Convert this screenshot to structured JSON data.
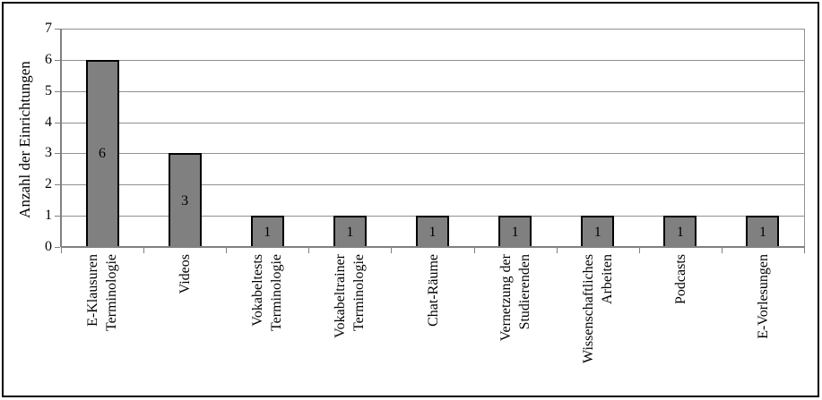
{
  "chart_data": {
    "type": "bar",
    "ylabel": "Anzahl der Einrichtungen",
    "ylim": [
      0,
      7
    ],
    "yticks": [
      0,
      1,
      2,
      3,
      4,
      5,
      6,
      7
    ],
    "grid": true,
    "legend": false,
    "categories": [
      "E-Klausuren Terminologie",
      "Videos",
      "Vokabeltests Terminologie",
      "Vokabeltrainer Terminologie",
      "Chat-Räume",
      "Vernetzung der Studierenden",
      "Wissenschaftliches Arbeiten",
      "Podcasts",
      "E-Vorlesungen"
    ],
    "category_label_lines": [
      [
        "E-Klausuren",
        "Terminologie"
      ],
      [
        "Videos"
      ],
      [
        "Vokabeltests",
        "Terminologie"
      ],
      [
        "Vokabeltrainer",
        "Terminologie"
      ],
      [
        "Chat-Räume"
      ],
      [
        "Vernetzung der",
        "Studierenden"
      ],
      [
        "Wissenschaftliches",
        "Arbeiten"
      ],
      [
        "Podcasts"
      ],
      [
        "E-Vorlesungen"
      ]
    ],
    "values": [
      6,
      3,
      1,
      1,
      1,
      1,
      1,
      1,
      1
    ],
    "bar_value_labels": [
      "6",
      "3",
      "1",
      "1",
      "1",
      "1",
      "1",
      "1",
      "1"
    ],
    "colors": {
      "bar_fill": "#808080",
      "bar_border": "#000000",
      "gridline": "#909090",
      "axis": "#808080",
      "text": "#000000",
      "background": "#FFFFFF",
      "frame_border": "#000000"
    }
  }
}
